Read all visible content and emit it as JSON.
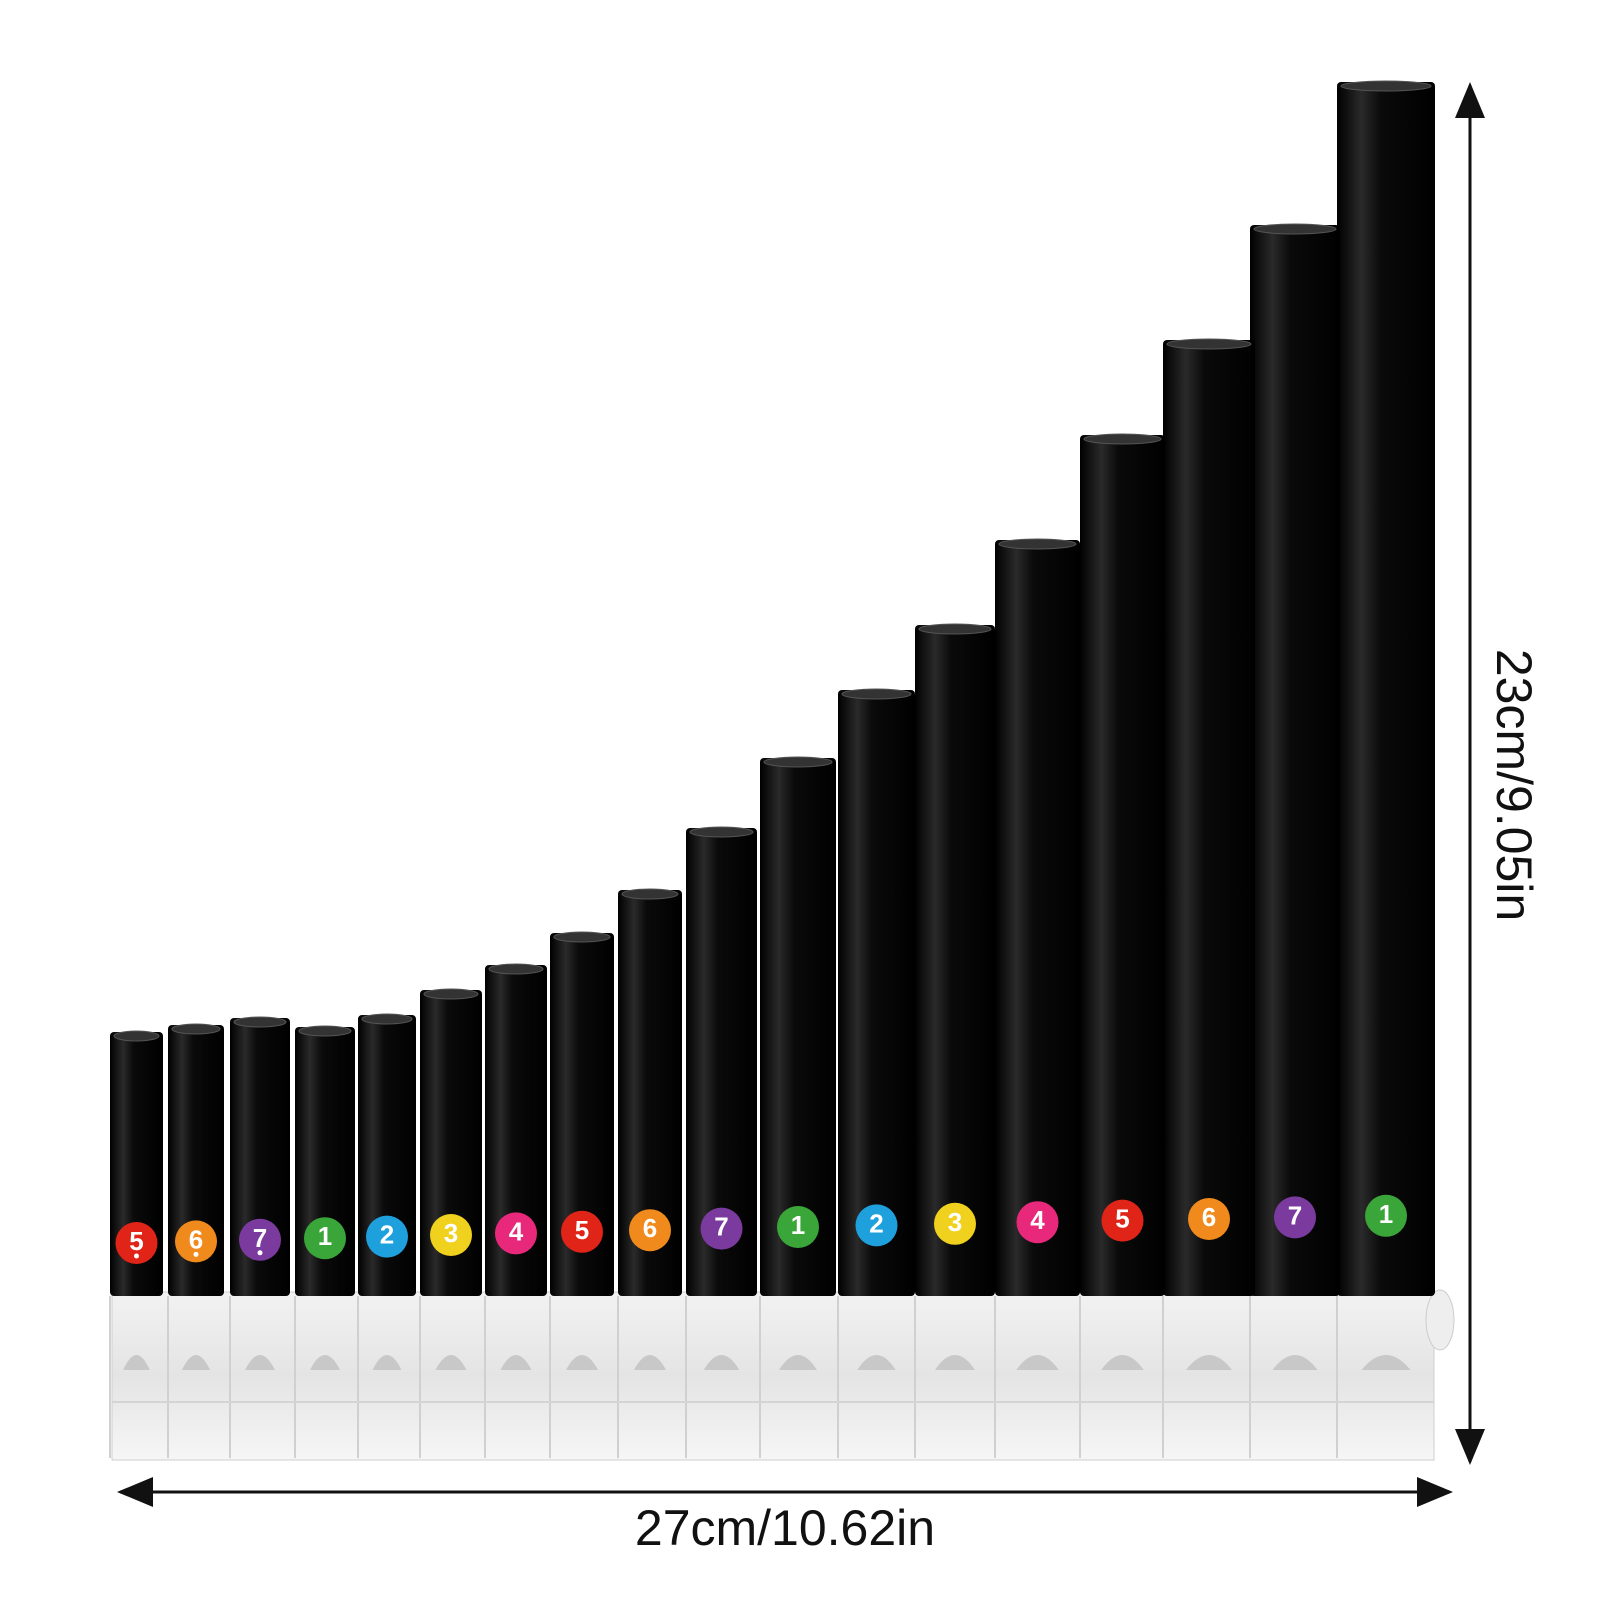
{
  "dimensions": {
    "width": "27cm/10.62in",
    "height": "23cm/9.05in"
  },
  "notes": [
    "5",
    "6",
    "7",
    "1",
    "2",
    "3",
    "4",
    "5",
    "6",
    "7",
    "1",
    "2",
    "3",
    "4",
    "5",
    "6",
    "7",
    "1"
  ]
}
